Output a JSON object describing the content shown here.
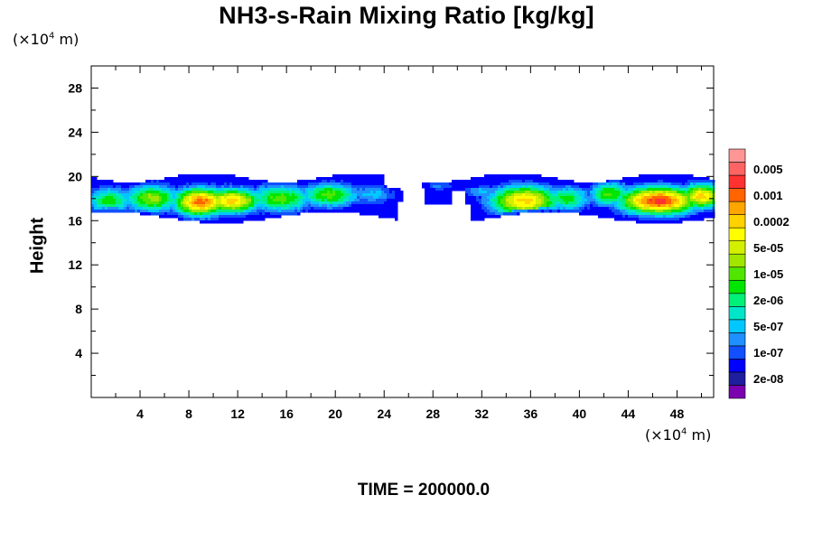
{
  "chart_data": {
    "type": "heatmap",
    "title": "NH3-s-Rain Mixing Ratio [kg/kg]",
    "ylabel": "Height",
    "xlabel": "",
    "x_unit": "(×10⁴ m)",
    "y_unit": "(×10⁴ m)",
    "time_label": "TIME = 200000.0",
    "xlim": [
      0,
      51
    ],
    "ylim": [
      0,
      30
    ],
    "x_ticks": [
      4,
      8,
      12,
      16,
      20,
      24,
      28,
      32,
      36,
      40,
      44,
      48
    ],
    "y_ticks": [
      4,
      8,
      12,
      16,
      20,
      24,
      28
    ],
    "colorbar": {
      "levels": [
        "",
        "2e-08",
        "",
        "1e-07",
        "",
        "5e-07",
        "",
        "2e-06",
        "",
        "1e-05",
        "",
        "5e-05",
        "",
        "0.0002",
        "",
        "0.001",
        "",
        "0.005",
        ""
      ],
      "colors": [
        "#7a00b0",
        "#1e1e9e",
        "#0000ff",
        "#1050ff",
        "#1e90ff",
        "#00c8ff",
        "#00e6c8",
        "#00f078",
        "#00e600",
        "#50e600",
        "#a0e600",
        "#d2f000",
        "#ffff00",
        "#ffd200",
        "#ffa500",
        "#ff6400",
        "#ff3232",
        "#ff6464",
        "#ff9696"
      ]
    },
    "field": {
      "description_levels": "level index 0-18 per color",
      "layer_bottom": 16.3,
      "layer_top": 19.9,
      "blobs": [
        {
          "x": 1.5,
          "y": 17.8,
          "sx": 1.6,
          "sy": 1.0,
          "level": 8
        },
        {
          "x": 5.0,
          "y": 18.0,
          "sx": 1.8,
          "sy": 1.0,
          "level": 10
        },
        {
          "x": 9.0,
          "y": 17.7,
          "sx": 1.8,
          "sy": 1.0,
          "level": 15
        },
        {
          "x": 11.5,
          "y": 17.8,
          "sx": 2.0,
          "sy": 0.9,
          "level": 13
        },
        {
          "x": 15.5,
          "y": 18.0,
          "sx": 2.2,
          "sy": 1.0,
          "level": 9
        },
        {
          "x": 19.5,
          "y": 18.3,
          "sx": 2.0,
          "sy": 0.9,
          "level": 9
        },
        {
          "x": 23.0,
          "y": 18.4,
          "sx": 1.6,
          "sy": 0.8,
          "level": 5
        },
        {
          "x": 28.5,
          "y": 19.3,
          "sx": 1.0,
          "sy": 0.6,
          "level": 4
        },
        {
          "x": 32.0,
          "y": 18.6,
          "sx": 1.2,
          "sy": 0.5,
          "level": 5
        },
        {
          "x": 35.5,
          "y": 17.8,
          "sx": 2.3,
          "sy": 1.1,
          "level": 13
        },
        {
          "x": 39.0,
          "y": 18.0,
          "sx": 1.6,
          "sy": 0.9,
          "level": 8
        },
        {
          "x": 42.5,
          "y": 18.4,
          "sx": 1.4,
          "sy": 0.9,
          "level": 9
        },
        {
          "x": 46.5,
          "y": 17.8,
          "sx": 2.6,
          "sy": 1.0,
          "level": 16
        },
        {
          "x": 50.0,
          "y": 18.2,
          "sx": 1.4,
          "sy": 0.9,
          "level": 13
        }
      ]
    }
  }
}
